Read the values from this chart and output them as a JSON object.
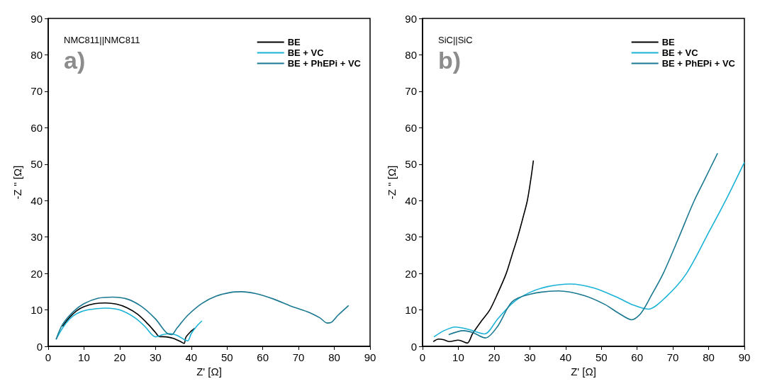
{
  "chart_data": [
    {
      "type": "line",
      "annotations": [
        "NMC811||NMC811",
        "a)"
      ],
      "xlabel": "Z' [Ω]",
      "ylabel": "-Z '' [Ω]",
      "xlim": [
        0,
        90
      ],
      "xticks": [
        0,
        10,
        20,
        30,
        40,
        50,
        60,
        70,
        80,
        90
      ],
      "ylim": [
        0,
        90
      ],
      "yticks": [
        0,
        10,
        20,
        30,
        40,
        50,
        60,
        70,
        80,
        90
      ],
      "grid": false,
      "legend": "top right",
      "marker": "none",
      "line_style": "solid",
      "series": [
        {
          "name": "BE",
          "color": "#000000",
          "x": [
            4,
            6,
            8,
            10,
            13,
            16,
            19,
            22,
            25,
            28,
            30,
            31,
            33,
            35,
            37,
            38,
            38.5,
            40,
            41
          ],
          "values": [
            5.5,
            8,
            9.8,
            10.9,
            11.7,
            11.9,
            11.6,
            10.6,
            8.8,
            6,
            3.8,
            2.7,
            2.6,
            2.2,
            1.3,
            0.8,
            2.5,
            4.2,
            5
          ]
        },
        {
          "name": "BE + VC",
          "color": "#1ab3d6",
          "x": [
            2.2,
            4,
            6,
            8,
            11,
            16,
            20,
            24,
            27,
            29,
            30,
            32,
            34,
            36,
            38,
            39,
            40,
            41.5,
            43
          ],
          "values": [
            1.9,
            5,
            7.5,
            9,
            10,
            10.5,
            10,
            8,
            5.5,
            3.2,
            2.6,
            3.2,
            3.5,
            3,
            1.9,
            1.5,
            3.5,
            5.5,
            7
          ]
        },
        {
          "name": "BE + PhEPi + VC",
          "color": "#1a7890",
          "x": [
            2.2,
            4,
            7,
            10,
            14,
            18,
            22,
            26,
            30,
            33,
            34.5,
            36,
            39,
            43,
            47,
            51,
            54,
            58,
            63,
            68,
            73,
            76,
            78,
            79,
            81,
            84
          ],
          "values": [
            1.9,
            6,
            9.5,
            11.7,
            13.2,
            13.5,
            13,
            11,
            7.5,
            3.8,
            3.2,
            5,
            8.5,
            11.8,
            13.8,
            14.8,
            15,
            14.5,
            13,
            11,
            9.3,
            7.8,
            6.4,
            6.5,
            8.5,
            11.2
          ]
        }
      ]
    },
    {
      "type": "line",
      "annotations": [
        "SiC||SiC",
        "b)"
      ],
      "xlabel": "Z' [Ω]",
      "ylabel": "-Z '' [Ω]",
      "xlim": [
        0,
        90
      ],
      "xticks": [
        0,
        10,
        20,
        30,
        40,
        50,
        60,
        70,
        80,
        90
      ],
      "ylim": [
        0,
        90
      ],
      "yticks": [
        0,
        10,
        20,
        30,
        40,
        50,
        60,
        70,
        80,
        90
      ],
      "grid": false,
      "legend": "top right",
      "marker": "none",
      "line_style": "solid",
      "series": [
        {
          "name": "BE",
          "color": "#000000",
          "x": [
            3,
            4.5,
            6,
            7.5,
            10,
            12.5,
            14,
            16.5,
            18.8,
            21,
            23.4,
            25,
            26.6,
            28,
            29.3,
            30.3,
            31
          ],
          "values": [
            1.3,
            2,
            1.8,
            1.3,
            1.7,
            0.9,
            3.5,
            7,
            10,
            14.5,
            20,
            25,
            30,
            35,
            40,
            46,
            51
          ]
        },
        {
          "name": "BE + VC",
          "color": "#1ab3d6",
          "x": [
            3.2,
            6,
            9.2,
            13,
            17.3,
            21,
            25.3,
            30,
            35,
            41.3,
            48,
            54.3,
            59,
            63.1,
            68,
            73.8,
            80.3,
            85,
            90
          ],
          "values": [
            2.6,
            4.3,
            5.3,
            4.6,
            3.4,
            7.5,
            12,
            14.8,
            16.4,
            17.1,
            16,
            13.5,
            11.3,
            10.2,
            13.5,
            20,
            31.8,
            40.5,
            50.5
          ]
        },
        {
          "name": "BE + PhEPi + VC",
          "color": "#1a7890",
          "x": [
            7.3,
            11.4,
            14,
            17.6,
            21,
            25,
            30,
            38,
            45,
            51,
            55,
            58.5,
            61,
            64,
            67.3,
            71.5,
            75.8,
            79,
            82.5
          ],
          "values": [
            3.2,
            4.3,
            3.8,
            2.3,
            5.5,
            12.2,
            14.3,
            15.2,
            14,
            11.5,
            9,
            7.3,
            9,
            14,
            20,
            29.5,
            39.6,
            46,
            53
          ]
        }
      ]
    }
  ]
}
